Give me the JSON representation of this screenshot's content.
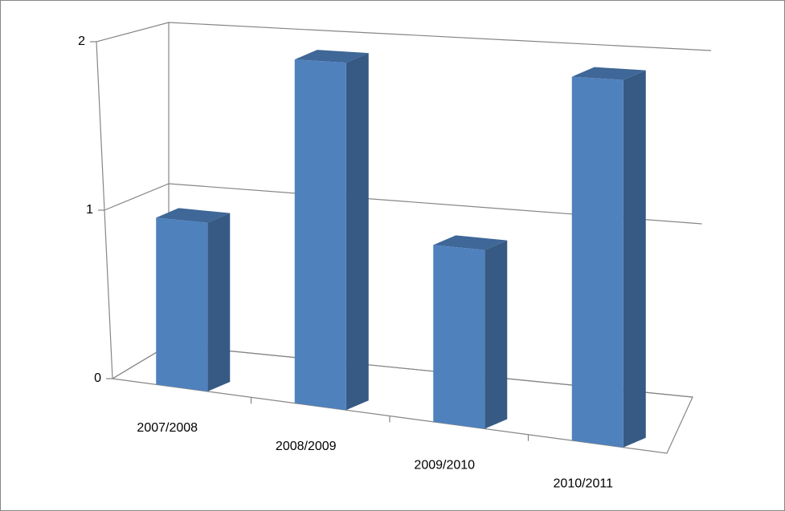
{
  "chart_data": {
    "type": "bar",
    "categories": [
      "2007/2008",
      "2008/2009",
      "2009/2010",
      "2010/2011"
    ],
    "values": [
      1,
      2,
      1,
      2
    ],
    "color": "#4f81bd",
    "ylim": [
      0,
      2
    ],
    "yticks": [
      0,
      1,
      2
    ],
    "grid": true
  }
}
